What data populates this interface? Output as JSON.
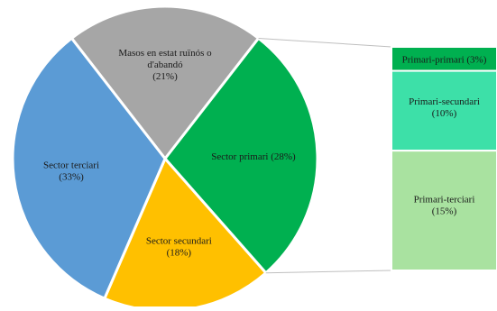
{
  "chart_data": {
    "type": "pie",
    "slices": [
      {
        "label": "Masos en estat ruïnós o d'abandó",
        "label_lines": [
          "Masos en estat ruïnós o",
          "d'abandó"
        ],
        "value_label": "(21%)",
        "value": 21,
        "color": "#a6a6a6"
      },
      {
        "label": "Sector primari",
        "label_lines": [
          "Sector primari (28%)"
        ],
        "value_label": "",
        "value": 28,
        "color": "#00b050"
      },
      {
        "label": "Sector secundari",
        "label_lines": [
          "Sector secundari"
        ],
        "value_label": "(18%)",
        "value": 18,
        "color": "#ffc000"
      },
      {
        "label": "Sector terciari",
        "label_lines": [
          "Sector terciari"
        ],
        "value_label": "(33%)",
        "value": 33,
        "color": "#5b9bd5"
      }
    ],
    "breakdown": {
      "of_slice": "Sector primari",
      "type": "stacked-bar",
      "segments": [
        {
          "label": "Primari-primari",
          "label_lines": [
            "Primari-primari (3%)"
          ],
          "value_label": "",
          "value": 3,
          "color": "#00b050"
        },
        {
          "label": "Primari-secundari",
          "label_lines": [
            "Primari-secundari"
          ],
          "value_label": "(10%)",
          "value": 10,
          "color": "#3de0a8"
        },
        {
          "label": "Primari-terciari",
          "label_lines": [
            "Primari-terciari"
          ],
          "value_label": "(15%)",
          "value": 15,
          "color": "#a9e2a0"
        }
      ]
    }
  }
}
